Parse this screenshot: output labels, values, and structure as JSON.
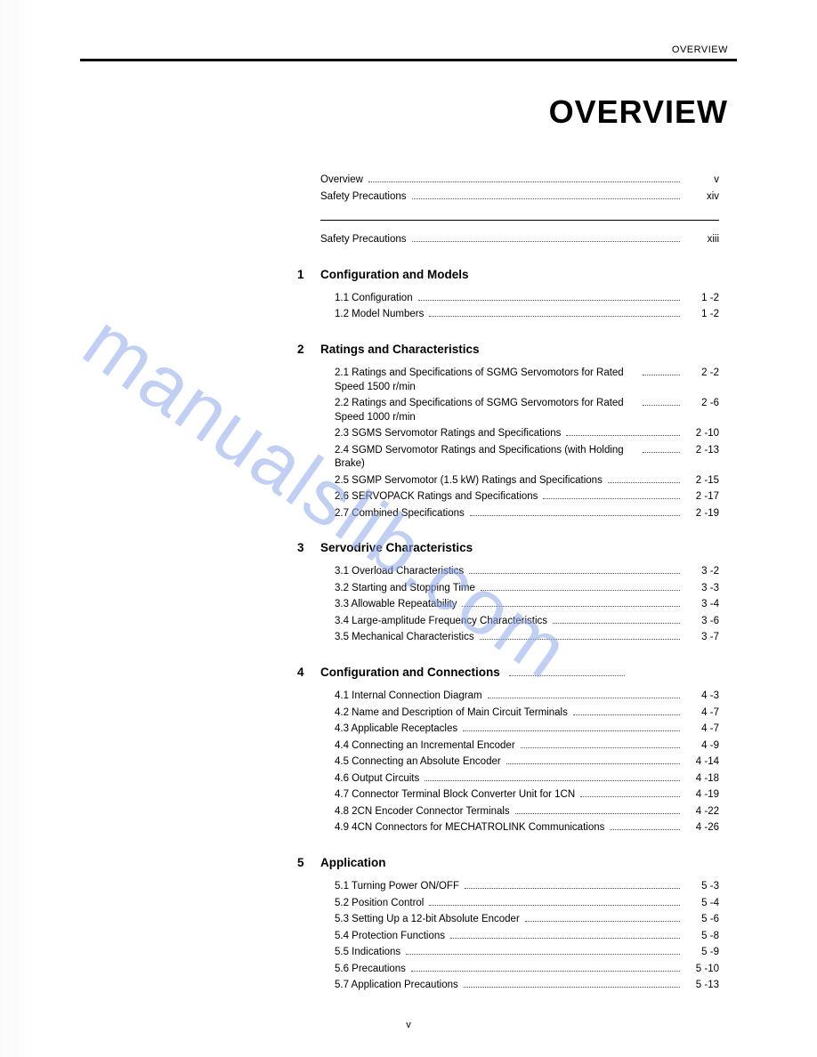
{
  "header_label": "OVERVIEW",
  "main_title": "OVERVIEW",
  "watermark_text": "manualslib.com",
  "page_number": "v",
  "front": [
    {
      "label": "Overview",
      "page": "v"
    },
    {
      "label": "Safety Precautions",
      "page": "xiv"
    }
  ],
  "pre": [
    {
      "label": "Safety Precautions",
      "page": "xiii"
    }
  ],
  "sections": [
    {
      "num": "1",
      "title": "Configuration and Models",
      "items": [
        {
          "label": "1.1  Configuration",
          "page": "1 -2"
        },
        {
          "label": "1.2  Model Numbers",
          "page": "1 -2"
        }
      ]
    },
    {
      "num": "2",
      "title": "Ratings and Characteristics",
      "items": [
        {
          "label": "2.1  Ratings and Specifications of SGMG Servomotors for Rated Speed 1500 r/min",
          "page": "2 -2"
        },
        {
          "label": "2.2  Ratings and Specifications of SGMG Servomotors for  Rated Speed 1000 r/min",
          "page": "2 -6"
        },
        {
          "label": "2.3  SGMS Servomotor Ratings and Specifications",
          "page": "2 -10"
        },
        {
          "label": "2.4  SGMD Servomotor Ratings and Specifications (with Holding Brake)",
          "page": "2 -13"
        },
        {
          "label": "2.5  SGMP Servomotor (1.5 kW) Ratings and Specifications",
          "page": "2 -15"
        },
        {
          "label": "2.6  SERVOPACK Ratings and Specifications",
          "page": "2 -17"
        },
        {
          "label": "2.7  Combined Specifications",
          "page": "2 -19"
        }
      ]
    },
    {
      "num": "3",
      "title": "Servodrive Characteristics",
      "items": [
        {
          "label": "3.1  Overload Characteristics",
          "page": "3 -2"
        },
        {
          "label": "3.2  Starting and Stopping Time",
          "page": "3 -3"
        },
        {
          "label": "3.3  Allowable Repeatability",
          "page": "3 -4"
        },
        {
          "label": "3.4  Large-amplitude Frequency Characteristics",
          "page": "3 -6"
        },
        {
          "label": "3.5  Mechanical Characteristics",
          "page": "3 -7"
        }
      ]
    },
    {
      "num": "4",
      "title": "Configuration and Connections",
      "title_dots": true,
      "items": [
        {
          "label": "4.1  Internal Connection Diagram",
          "page": "4 -3"
        },
        {
          "label": "4.2  Name and Description of Main Circuit Terminals",
          "page": "4 -7"
        },
        {
          "label": "4.3  Applicable Receptacles",
          "page": "4 -7"
        },
        {
          "label": "4.4  Connecting an Incremental Encoder",
          "page": "4 -9"
        },
        {
          "label": "4.5  Connecting an Absolute Encoder",
          "page": "4 -14"
        },
        {
          "label": "4.6  Output Circuits",
          "page": "4 -18"
        },
        {
          "label": "4.7  Connector Terminal Block Converter Unit for 1CN",
          "page": "4 -19"
        },
        {
          "label": "4.8  2CN Encoder Connector Terminals",
          "page": "4 -22"
        },
        {
          "label": "4.9  4CN Connectors for MECHATROLINK Communications",
          "page": "4 -26"
        }
      ]
    },
    {
      "num": "5",
      "title": "Application",
      "items": [
        {
          "label": "5.1  Turning Power ON/OFF",
          "page": "5 -3"
        },
        {
          "label": "5.2  Position Control",
          "page": "5 -4"
        },
        {
          "label": "5.3  Setting Up a 12-bit Absolute Encoder",
          "page": "5 -6"
        },
        {
          "label": "5.4  Protection Functions",
          "page": "5 -8"
        },
        {
          "label": "5.5  Indications",
          "page": "5 -9"
        },
        {
          "label": "5.6  Precautions",
          "page": "5 -10"
        },
        {
          "label": "5.7  Application Precautions",
          "page": "5 -13"
        }
      ]
    }
  ]
}
